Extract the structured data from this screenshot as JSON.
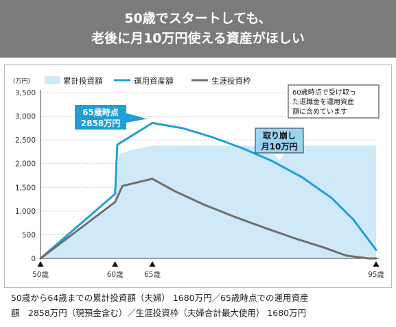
{
  "header": {
    "title_line1": "50歳でスタートしても、",
    "title_line2": "老後に月10万円使える資産がほしい"
  },
  "chart_data": {
    "type": "area",
    "unit_label": "(万円)",
    "ylim": [
      0,
      3500
    ],
    "yticks": [
      0,
      500,
      1000,
      1500,
      2000,
      2500,
      3000,
      3500
    ],
    "ytick_labels": [
      "0",
      "500",
      "1,000",
      "1,500",
      "2,000",
      "2,500",
      "3,000",
      "3,500"
    ],
    "xlim": [
      50,
      95
    ],
    "xticks": [
      {
        "age": 50,
        "label": "50歳"
      },
      {
        "age": 60,
        "label": "60歳"
      },
      {
        "age": 65,
        "label": "65歳"
      },
      {
        "age": 95,
        "label": "95歳"
      }
    ],
    "legend_position": "top",
    "series": [
      {
        "name": "累計投資額",
        "kind": "area",
        "color": "#cfe9f8",
        "points": [
          [
            50,
            0
          ],
          [
            60,
            1200
          ],
          [
            60.5,
            2200
          ],
          [
            62,
            2280
          ],
          [
            65,
            2380
          ],
          [
            95,
            2380
          ]
        ]
      },
      {
        "name": "運用資産額",
        "kind": "line",
        "color": "#1f9fd8",
        "points": [
          [
            50,
            0
          ],
          [
            60,
            1360
          ],
          [
            60.3,
            2400
          ],
          [
            65,
            2858
          ],
          [
            69,
            2750
          ],
          [
            73,
            2560
          ],
          [
            77,
            2330
          ],
          [
            81,
            2060
          ],
          [
            85,
            1720
          ],
          [
            89,
            1280
          ],
          [
            92,
            810
          ],
          [
            95,
            180
          ]
        ]
      },
      {
        "name": "生涯投資枠",
        "kind": "line",
        "color": "#6e6e6e",
        "points": [
          [
            50,
            0
          ],
          [
            60,
            1190
          ],
          [
            61,
            1530
          ],
          [
            65,
            1680
          ],
          [
            68,
            1420
          ],
          [
            72,
            1130
          ],
          [
            76,
            880
          ],
          [
            80,
            650
          ],
          [
            84,
            430
          ],
          [
            88,
            230
          ],
          [
            91,
            60
          ],
          [
            94,
            0
          ],
          [
            95,
            0
          ]
        ]
      }
    ],
    "annotations": {
      "peak_label": [
        "65歳時点",
        "2858万円"
      ],
      "withdraw_label": [
        "取り崩し",
        "月10万円"
      ],
      "note": [
        "60歳時点で受け取っ",
        "た退職金を運用資産",
        "額に含めています"
      ]
    }
  },
  "caption": {
    "line1": "50歳から64歳までの累計投資額（夫婦） 1680万円／65歳時点での運用資産",
    "line2": "額　2858万円（現預金含む）／生涯投資枠（夫婦合計最大使用） 1680万円"
  }
}
